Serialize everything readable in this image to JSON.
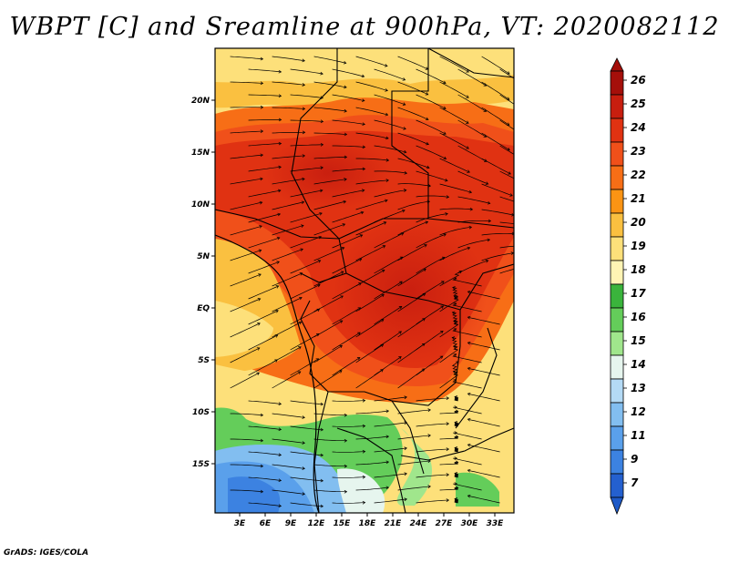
{
  "title": "WBPT [C] and Sreamline at 900hPa, VT: 2020082112",
  "credit": "GrADS: IGES/COLA",
  "map": {
    "lat_labels": [
      {
        "text": "20N",
        "lat": 20
      },
      {
        "text": "15N",
        "lat": 15
      },
      {
        "text": "10N",
        "lat": 10
      },
      {
        "text": "5N",
        "lat": 5
      },
      {
        "text": "EQ",
        "lat": 0
      },
      {
        "text": "5S",
        "lat": -5
      },
      {
        "text": "10S",
        "lat": -10
      },
      {
        "text": "15S",
        "lat": -15
      }
    ],
    "lon_labels": [
      {
        "text": "3E",
        "lon": 3
      },
      {
        "text": "6E",
        "lon": 6
      },
      {
        "text": "9E",
        "lon": 9
      },
      {
        "text": "12E",
        "lon": 12
      },
      {
        "text": "15E",
        "lon": 15
      },
      {
        "text": "18E",
        "lon": 18
      },
      {
        "text": "21E",
        "lon": 21
      },
      {
        "text": "24E",
        "lon": 24
      },
      {
        "text": "27E",
        "lon": 27
      },
      {
        "text": "30E",
        "lon": 30
      },
      {
        "text": "33E",
        "lon": 33
      }
    ]
  },
  "colorbar": {
    "levels": [
      {
        "label": "26",
        "color": "#a50f0a"
      },
      {
        "label": "25",
        "color": "#c81e0f"
      },
      {
        "label": "24",
        "color": "#e03212"
      },
      {
        "label": "23",
        "color": "#f0501a"
      },
      {
        "label": "22",
        "color": "#f76e16"
      },
      {
        "label": "21",
        "color": "#fb9414"
      },
      {
        "label": "20",
        "color": "#fac040"
      },
      {
        "label": "19",
        "color": "#fde07a"
      },
      {
        "label": "18",
        "color": "#fff4b4"
      },
      {
        "label": "17",
        "color": "#3ab43c"
      },
      {
        "label": "16",
        "color": "#64cd5a"
      },
      {
        "label": "15",
        "color": "#a0e68c"
      },
      {
        "label": "14",
        "color": "#e6f5ee"
      },
      {
        "label": "13",
        "color": "#b4daf5"
      },
      {
        "label": "12",
        "color": "#82bef0"
      },
      {
        "label": "11",
        "color": "#5aa0eb"
      },
      {
        "label": "9",
        "color": "#3c82e1"
      },
      {
        "label": "7",
        "color": "#2460cf"
      }
    ],
    "bottom_color": "#1e5ac8"
  }
}
